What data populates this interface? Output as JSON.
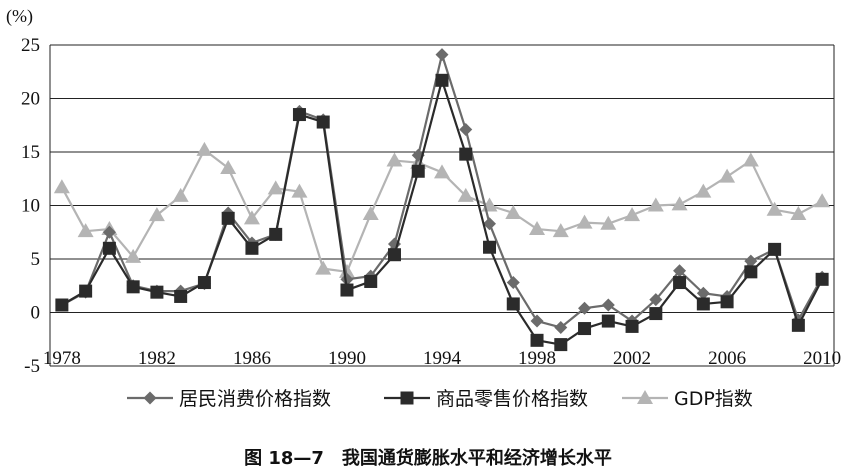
{
  "chart_data": {
    "type": "line",
    "unit_label": "(%)",
    "x": [
      1978,
      1979,
      1980,
      1981,
      1982,
      1983,
      1984,
      1985,
      1986,
      1987,
      1988,
      1989,
      1990,
      1991,
      1992,
      1993,
      1994,
      1995,
      1996,
      1997,
      1998,
      1999,
      2000,
      2001,
      2002,
      2003,
      2004,
      2005,
      2006,
      2007,
      2008,
      2009,
      2010
    ],
    "x_tick_labels": [
      "1978",
      "1982",
      "1986",
      "1990",
      "1994",
      "1998",
      "2002",
      "2006",
      "2010"
    ],
    "ylim": [
      -5,
      25
    ],
    "y_ticks": [
      -5,
      0,
      5,
      10,
      15,
      20,
      25
    ],
    "grid": "horizontal",
    "series": [
      {
        "name": "居民消费价格指数",
        "marker": "diamond",
        "color": "#6b6b6b",
        "values": [
          0.7,
          1.9,
          7.5,
          2.5,
          2.0,
          2.0,
          2.7,
          9.3,
          6.5,
          7.3,
          18.8,
          18.0,
          3.1,
          3.4,
          6.4,
          14.7,
          24.1,
          17.1,
          8.3,
          2.8,
          -0.8,
          -1.4,
          0.4,
          0.7,
          -0.8,
          1.2,
          3.9,
          1.8,
          1.5,
          4.8,
          5.9,
          -0.7,
          3.3
        ]
      },
      {
        "name": "商品零售价格指数",
        "marker": "square",
        "color": "#2b2b2b",
        "values": [
          0.7,
          2.0,
          6.0,
          2.4,
          1.9,
          1.5,
          2.8,
          8.8,
          6.0,
          7.3,
          18.5,
          17.8,
          2.1,
          2.9,
          5.4,
          13.2,
          21.7,
          14.8,
          6.1,
          0.8,
          -2.6,
          -3.0,
          -1.5,
          -0.8,
          -1.3,
          -0.1,
          2.8,
          0.8,
          1.0,
          3.8,
          5.9,
          -1.2,
          3.1
        ]
      },
      {
        "name": "GDP指数",
        "marker": "triangle",
        "color": "#b4b4b4",
        "values": [
          11.7,
          7.6,
          7.8,
          5.2,
          9.1,
          10.9,
          15.2,
          13.5,
          8.8,
          11.6,
          11.3,
          4.1,
          3.8,
          9.2,
          14.2,
          14.0,
          13.1,
          10.9,
          10.0,
          9.3,
          7.8,
          7.6,
          8.4,
          8.3,
          9.1,
          10.0,
          10.1,
          11.3,
          12.7,
          14.2,
          9.6,
          9.2,
          10.4
        ]
      }
    ]
  },
  "caption": "图 18—7　我国通货膨胀水平和经济增长水平"
}
